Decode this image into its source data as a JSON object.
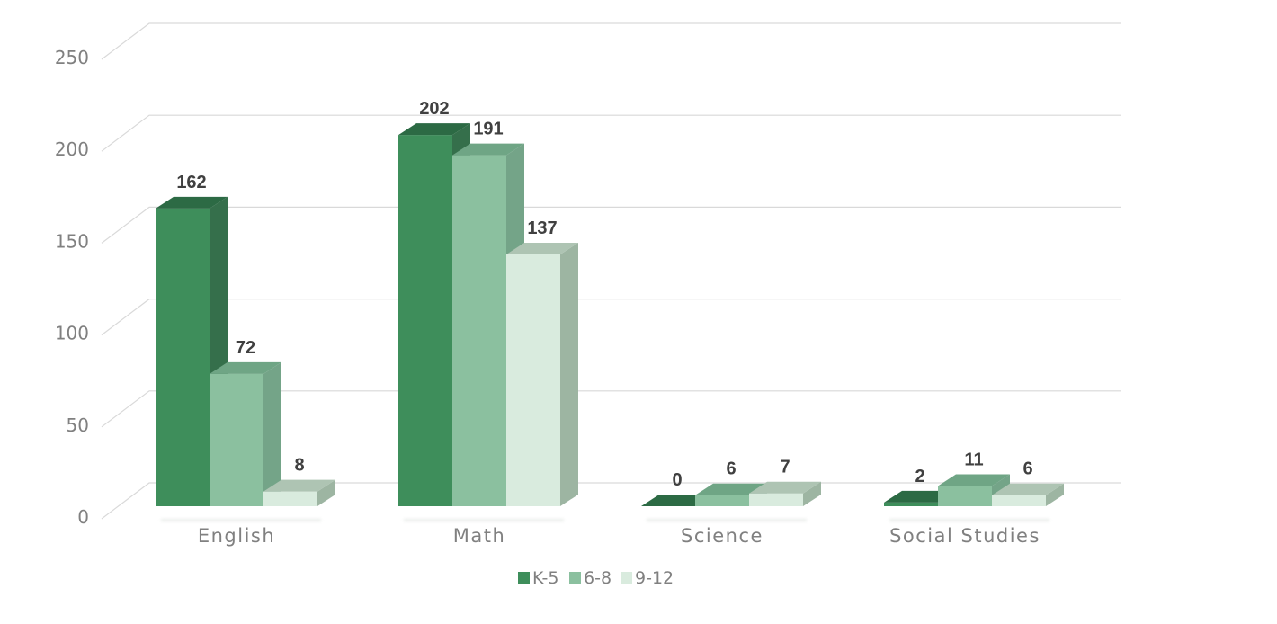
{
  "chart_data": {
    "type": "bar",
    "variant": "3d-clustered-column",
    "categories": [
      "English",
      "Math",
      "Science",
      "Social Studies"
    ],
    "series": [
      {
        "name": "K-5",
        "values": [
          162,
          202,
          0,
          2
        ],
        "color_front": "#3E8E5B",
        "color_top": "#2C6A44",
        "color_side": "#356F4B"
      },
      {
        "name": "6-8",
        "values": [
          72,
          191,
          6,
          11
        ],
        "color_front": "#8BC09F",
        "color_top": "#6FA585",
        "color_side": "#74A488"
      },
      {
        "name": "9-12",
        "values": [
          8,
          137,
          7,
          6
        ],
        "color_front": "#D9EBDE",
        "color_top": "#AEC4B3",
        "color_side": "#9DB5A2"
      }
    ],
    "title": "",
    "xlabel": "",
    "ylabel": "",
    "ylim": [
      0,
      250
    ],
    "yticks": [
      0,
      50,
      100,
      150,
      200,
      250
    ],
    "grid": true,
    "legend_position": "bottom",
    "data_labels": true,
    "colors": {
      "gridline": "#D9D9D9",
      "tick_label": "#808080",
      "category_label": "#808080",
      "data_label": "#404040",
      "shadow": "#C3CCC5",
      "background": "#FFFFFF"
    }
  }
}
